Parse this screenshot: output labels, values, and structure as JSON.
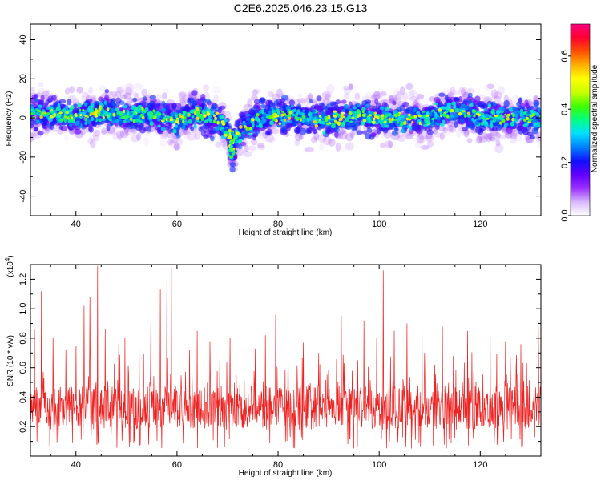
{
  "title": "C2E6.2025.046.23.15.G13",
  "chart_data": [
    {
      "type": "heatmap",
      "xlabel": "Height of straight line (km)",
      "ylabel": "Frequency (Hz)",
      "xlim": [
        31,
        132
      ],
      "ylim": [
        -50,
        48
      ],
      "xticks": [
        40,
        60,
        80,
        100,
        120
      ],
      "yticks": [
        -40,
        -20,
        0,
        20,
        40
      ],
      "colorbar": {
        "label": "Normalized spectral amplitude",
        "ticks": [
          0.0,
          0.2,
          0.4,
          0.6
        ],
        "range": [
          0,
          0.72
        ],
        "colors": [
          "#ffffff",
          "#d8b8ff",
          "#9a30ff",
          "#6000ff",
          "#1010ff",
          "#0080ff",
          "#00e0ff",
          "#00ff80",
          "#40ff00",
          "#c8ff00",
          "#ffff00",
          "#ffb000",
          "#ff5000",
          "#ff0030",
          "#ff0080"
        ]
      },
      "centerline": [
        {
          "x": 31,
          "y": 3
        },
        {
          "x": 35,
          "y": 2
        },
        {
          "x": 40,
          "y": 0
        },
        {
          "x": 45,
          "y": 3
        },
        {
          "x": 50,
          "y": 1
        },
        {
          "x": 55,
          "y": 2
        },
        {
          "x": 60,
          "y": -2
        },
        {
          "x": 63,
          "y": 3
        },
        {
          "x": 66,
          "y": 1
        },
        {
          "x": 68,
          "y": -1
        },
        {
          "x": 69.5,
          "y": -5
        },
        {
          "x": 70.5,
          "y": -12
        },
        {
          "x": 71,
          "y": -18
        },
        {
          "x": 72,
          "y": -9
        },
        {
          "x": 73.5,
          "y": -4
        },
        {
          "x": 76,
          "y": 0
        },
        {
          "x": 80,
          "y": 1
        },
        {
          "x": 85,
          "y": 0
        },
        {
          "x": 90,
          "y": -1
        },
        {
          "x": 95,
          "y": 1
        },
        {
          "x": 100,
          "y": 0
        },
        {
          "x": 105,
          "y": -1
        },
        {
          "x": 110,
          "y": 0
        },
        {
          "x": 115,
          "y": 4
        },
        {
          "x": 120,
          "y": 1
        },
        {
          "x": 125,
          "y": 0
        },
        {
          "x": 132,
          "y": 0
        }
      ]
    },
    {
      "type": "line",
      "xlabel": "Height of straight line (km)",
      "ylabel": "SNR (10 * v/v)",
      "y_multiplier": "(x10",
      "y_multiplier_exp": "4",
      "y_multiplier_close": ")",
      "xlim": [
        31,
        132
      ],
      "ylim": [
        0.0,
        1.3
      ],
      "xticks": [
        40,
        60,
        80,
        100,
        120
      ],
      "yticks": [
        0.2,
        0.4,
        0.6,
        0.8,
        1.0,
        1.2
      ],
      "series": [
        {
          "color": "#ee2222",
          "baseline": 0.33,
          "spread": 0.15,
          "peaks": [
            {
              "x": 31.8,
              "y": 0.86
            },
            {
              "x": 33.2,
              "y": 1.12
            },
            {
              "x": 35.5,
              "y": 0.8
            },
            {
              "x": 38.0,
              "y": 0.72
            },
            {
              "x": 40.0,
              "y": 0.75
            },
            {
              "x": 41.6,
              "y": 1.02
            },
            {
              "x": 42.8,
              "y": 1.08
            },
            {
              "x": 44.3,
              "y": 1.29
            },
            {
              "x": 45.8,
              "y": 0.86
            },
            {
              "x": 48.5,
              "y": 0.76
            },
            {
              "x": 49.7,
              "y": 0.8
            },
            {
              "x": 52.5,
              "y": 0.72
            },
            {
              "x": 54.8,
              "y": 0.91
            },
            {
              "x": 56.7,
              "y": 1.13
            },
            {
              "x": 58.0,
              "y": 1.18
            },
            {
              "x": 58.9,
              "y": 1.28
            },
            {
              "x": 62.5,
              "y": 0.72
            },
            {
              "x": 64.0,
              "y": 0.85
            },
            {
              "x": 66.5,
              "y": 0.78
            },
            {
              "x": 70.5,
              "y": 0.8
            },
            {
              "x": 75.5,
              "y": 0.73
            },
            {
              "x": 77.5,
              "y": 0.82
            },
            {
              "x": 79.5,
              "y": 0.96
            },
            {
              "x": 82.0,
              "y": 0.76
            },
            {
              "x": 85.0,
              "y": 0.77
            },
            {
              "x": 88.0,
              "y": 0.7
            },
            {
              "x": 92.5,
              "y": 0.95
            },
            {
              "x": 94.0,
              "y": 0.72
            },
            {
              "x": 97.0,
              "y": 0.92
            },
            {
              "x": 99.5,
              "y": 0.8
            },
            {
              "x": 100.8,
              "y": 1.26
            },
            {
              "x": 103.0,
              "y": 0.85
            },
            {
              "x": 105.5,
              "y": 0.9
            },
            {
              "x": 108.5,
              "y": 0.95
            },
            {
              "x": 112.5,
              "y": 0.88
            },
            {
              "x": 117.5,
              "y": 0.85
            },
            {
              "x": 122.0,
              "y": 0.82
            },
            {
              "x": 125.0,
              "y": 0.78
            },
            {
              "x": 128.0,
              "y": 0.76
            },
            {
              "x": 131.5,
              "y": 0.88
            }
          ]
        }
      ]
    }
  ]
}
